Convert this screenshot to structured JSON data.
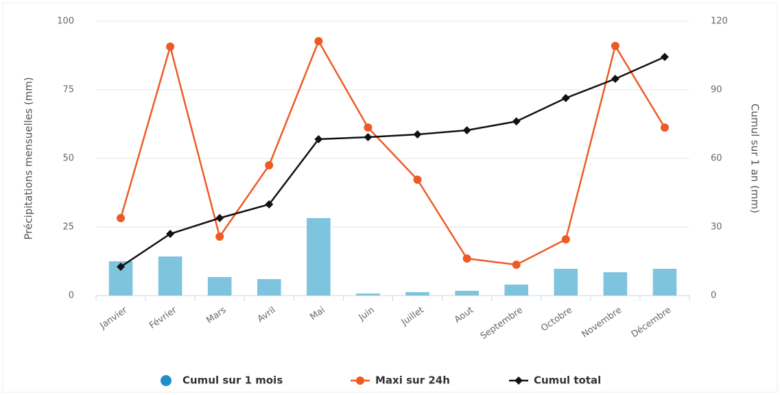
{
  "chart_data": {
    "type": "bar-line",
    "ylabel": "Précipitations mensuelles (mm)",
    "y2label": "Cumul sur 1 an (mm)",
    "categories": [
      "Janvier",
      "Février",
      "Mars",
      "Avril",
      "Mai",
      "Juin",
      "Juillet",
      "Aout",
      "Septembre",
      "Octobre",
      "Novembre",
      "Décembre"
    ],
    "series": [
      {
        "name": "Cumul sur 1 mois",
        "type": "bar",
        "color": "#7ec4df",
        "legend_color": "#1e90c8",
        "axis": "y",
        "values": [
          12.5,
          14.25,
          6.75,
          6,
          28.25,
          0.75,
          1.25,
          1.75,
          4,
          9.75,
          8.5,
          9.75
        ]
      },
      {
        "name": "Maxi sur 24h",
        "type": "line",
        "marker": "circle",
        "color": "#ee5a24",
        "axis": "y",
        "values": [
          28.25,
          90.75,
          21.5,
          47.5,
          92.75,
          61.25,
          42.25,
          13.5,
          11.25,
          20.5,
          91,
          61.25
        ]
      },
      {
        "name": "Cumul total",
        "type": "line",
        "marker": "diamond",
        "color": "#111111",
        "axis": "y2",
        "values": [
          12.6,
          27,
          33.9,
          39.9,
          68.4,
          69.3,
          70.5,
          72.3,
          76.2,
          86.4,
          94.8,
          104.4
        ]
      }
    ],
    "ylim": [
      0,
      100
    ],
    "yticks": [
      0,
      25,
      50,
      75,
      100
    ],
    "y2lim": [
      0,
      120
    ],
    "y2ticks": [
      0,
      30,
      60,
      90,
      120
    ],
    "grid": true,
    "legend": "bottom"
  }
}
